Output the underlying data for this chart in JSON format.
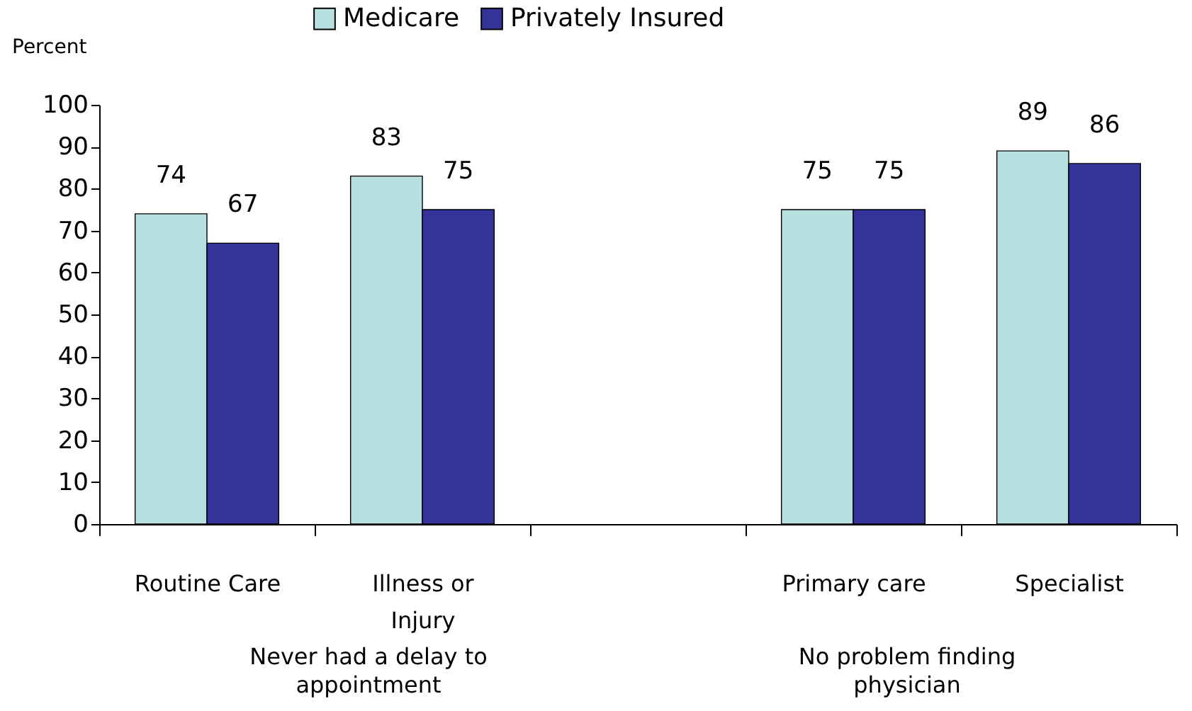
{
  "chart_data": {
    "type": "bar",
    "ylabel": "Percent",
    "categories": [
      "Routine Care",
      "Illness or Injury",
      null,
      "Primary care",
      "Specialist"
    ],
    "series": [
      {
        "name": "Medicare",
        "color": "#b8e0e0",
        "values": [
          74,
          83,
          null,
          75,
          89
        ]
      },
      {
        "name": "Privately Insured",
        "color": "#333399",
        "values": [
          67,
          75,
          null,
          75,
          86
        ]
      }
    ],
    "ylim": [
      0,
      100
    ],
    "yticks": [
      0,
      10,
      20,
      30,
      40,
      50,
      60,
      70,
      80,
      90,
      100
    ],
    "data_labels": true,
    "legend": "top",
    "grid": false,
    "annotations": [
      "Never had a delay to appointment",
      "No problem finding physician"
    ]
  }
}
